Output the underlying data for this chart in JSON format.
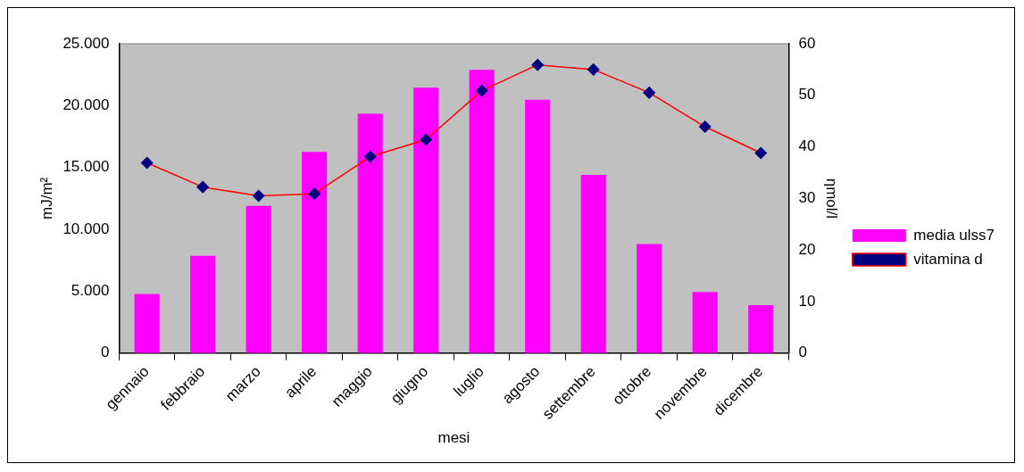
{
  "chart_data": {
    "type": "bar",
    "xlabel": "mesi",
    "ylabel": "mJ/m²",
    "y2label": "ηmol/l",
    "categories": [
      "gennaio",
      "febbraio",
      "marzo",
      "aprile",
      "maggio",
      "giugno",
      "luglio",
      "agosto",
      "settembre",
      "ottobre",
      "novembre",
      "dicembre"
    ],
    "series": [
      {
        "name": "media ulss7",
        "color": "#ff00ff",
        "values": [
          4770,
          7850,
          11890,
          16260,
          19340,
          21440,
          22900,
          20470,
          14400,
          8820,
          4940,
          3880
        ]
      },
      {
        "name": "vitamina d",
        "type": "line",
        "axis": "y2",
        "color": "#ff0000",
        "marker": "diamond",
        "values": [
          36.9,
          32.2,
          30.5,
          30.9,
          38.1,
          41.4,
          50.9,
          55.9,
          55.0,
          50.5,
          43.9,
          38.8
        ]
      }
    ],
    "ylim": [
      0,
      25000
    ],
    "yticks": [
      {
        "value": 0,
        "label": "0"
      },
      {
        "value": 5000,
        "label": "5.000"
      },
      {
        "value": 10000,
        "label": "10.000"
      },
      {
        "value": 15000,
        "label": "15.000"
      },
      {
        "value": 20000,
        "label": "20.000"
      },
      {
        "value": 25000,
        "label": "25.000"
      }
    ],
    "y2lim": [
      0,
      60
    ],
    "y2ticks": [
      0,
      10,
      20,
      30,
      40,
      50,
      60
    ],
    "grid": false,
    "legend": "right"
  }
}
